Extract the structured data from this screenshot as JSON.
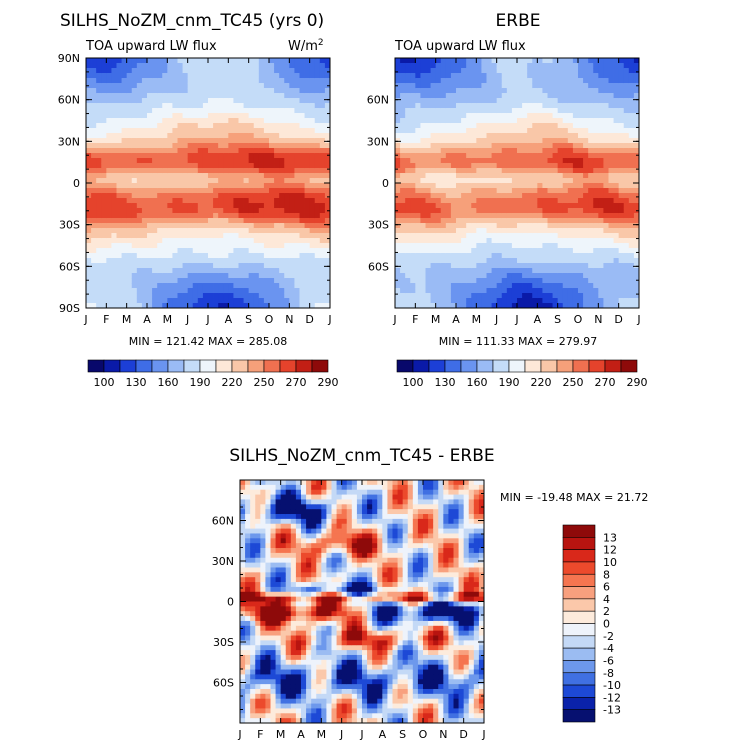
{
  "chart_data": [
    {
      "type": "heatmap",
      "title": "SILHS_NoZM_cnm_TC45 (yrs 0)",
      "subtitle_left": "TOA upward LW flux",
      "units": "W/m",
      "units_exp": "2",
      "x_ticks": [
        "J",
        "F",
        "M",
        "A",
        "M",
        "J",
        "J",
        "A",
        "S",
        "O",
        "N",
        "D",
        "J"
      ],
      "y_ticks": [
        "90N",
        "60N",
        "30N",
        "0",
        "30S",
        "60S",
        "90S"
      ],
      "y_tick_values": [
        90,
        60,
        30,
        0,
        -30,
        -60,
        -90
      ],
      "xlim": [
        0,
        12
      ],
      "ylim": [
        -90,
        90
      ],
      "min": 121.42,
      "max": 285.08,
      "stats_text": "MIN = 121.42 MAX = 285.08",
      "colorbar_labels": [
        "100",
        "130",
        "160",
        "190",
        "220",
        "250",
        "270",
        "290"
      ],
      "field": "model"
    },
    {
      "type": "heatmap",
      "title": "ERBE",
      "subtitle_left": "TOA upward LW flux",
      "x_ticks": [
        "J",
        "F",
        "M",
        "A",
        "M",
        "J",
        "J",
        "A",
        "S",
        "O",
        "N",
        "D",
        "J"
      ],
      "y_ticks": [
        "60N",
        "30N",
        "0",
        "30S",
        "60S"
      ],
      "y_tick_values": [
        60,
        30,
        0,
        -30,
        -60
      ],
      "xlim": [
        0,
        12
      ],
      "ylim": [
        -90,
        90
      ],
      "min": 111.33,
      "max": 279.97,
      "stats_text": "MIN = 111.33 MAX = 279.97",
      "colorbar_labels": [
        "100",
        "130",
        "160",
        "190",
        "220",
        "250",
        "270",
        "290"
      ],
      "field": "obs"
    },
    {
      "type": "heatmap",
      "title": "SILHS_NoZM_cnm_TC45 - ERBE",
      "x_ticks": [
        "J",
        "F",
        "M",
        "A",
        "M",
        "J",
        "J",
        "A",
        "S",
        "O",
        "N",
        "D",
        "J"
      ],
      "y_ticks": [
        "60N",
        "30N",
        "0",
        "30S",
        "60S"
      ],
      "y_tick_values": [
        60,
        30,
        0,
        -30,
        -60
      ],
      "xlim": [
        0,
        12
      ],
      "ylim": [
        -90,
        90
      ],
      "min": -19.48,
      "max": 21.72,
      "stats_text": "MIN = -19.48 MAX =  21.72",
      "colorbar_labels": [
        "13",
        "12",
        "10",
        "8",
        "6",
        "4",
        "2",
        "0",
        "-2",
        "-4",
        "-6",
        "-8",
        "-10",
        "-12",
        "-13"
      ],
      "field": "diff"
    }
  ],
  "colors": {
    "abs_palette": [
      "#08086b",
      "#0a1aa8",
      "#1c3fd6",
      "#3f6de6",
      "#6a94f0",
      "#9abbf5",
      "#c4dcf8",
      "#eef5fb",
      "#fde8d8",
      "#f9c7a8",
      "#f6a07a",
      "#f07050",
      "#e5432c",
      "#c21f15",
      "#8e0a0a"
    ],
    "diff_palette": [
      "#8e0a0a",
      "#b81410",
      "#d9281a",
      "#ec4a2c",
      "#f57550",
      "#f8a07e",
      "#fbc8aa",
      "#fdebdc",
      "#eef3fb",
      "#c4d9f6",
      "#9bbcf2",
      "#6d98ec",
      "#4070e2",
      "#1d49d6",
      "#0a22aa",
      "#061070"
    ]
  }
}
